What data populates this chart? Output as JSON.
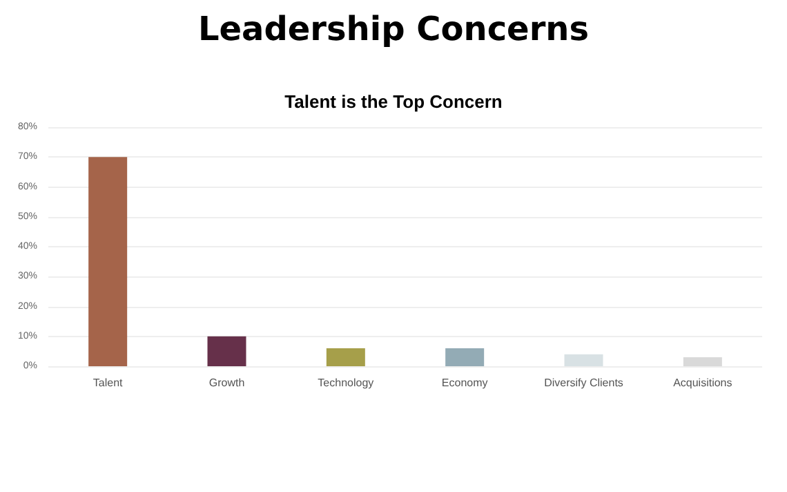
{
  "chart_data": {
    "type": "bar",
    "title": "Leadership Concerns",
    "subtitle": "Talent is the Top Concern",
    "categories": [
      "Talent",
      "Growth",
      "Technology",
      "Economy",
      "Diversify Clients",
      "Acquisitions"
    ],
    "values": [
      70,
      10,
      6,
      6,
      4,
      3
    ],
    "colors": [
      "#a5644a",
      "#66304a",
      "#a69f4a",
      "#93abb5",
      "#d8e1e4",
      "#d9d9d9"
    ],
    "ylim": [
      0,
      80
    ],
    "yticks": [
      {
        "value": 0,
        "label": "0%"
      },
      {
        "value": 10,
        "label": "10%"
      },
      {
        "value": 20,
        "label": "20%"
      },
      {
        "value": 30,
        "label": "30%"
      },
      {
        "value": 40,
        "label": "40%"
      },
      {
        "value": 50,
        "label": "50%"
      },
      {
        "value": 60,
        "label": "60%"
      },
      {
        "value": 70,
        "label": "70%"
      },
      {
        "value": 80,
        "label": "80%"
      }
    ],
    "grid": true
  }
}
